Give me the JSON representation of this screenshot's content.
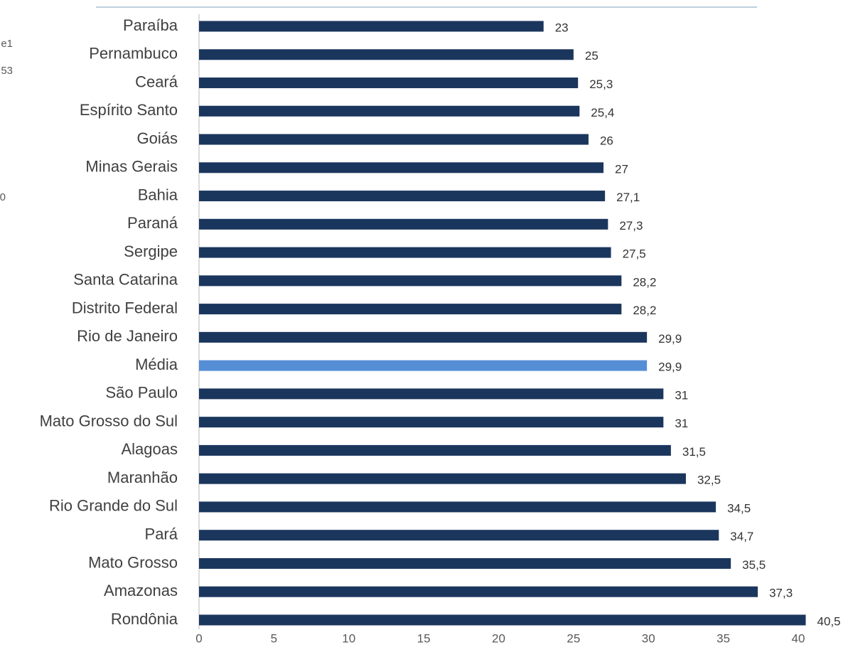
{
  "chart_data": {
    "type": "barh",
    "categories": [
      "Paraíba",
      "Pernambuco",
      "Ceará",
      "Espírito Santo",
      "Goiás",
      "Minas Gerais",
      "Bahia",
      "Paraná",
      "Sergipe",
      "Santa Catarina",
      "Distrito Federal",
      "Rio de Janeiro",
      "Média",
      "São Paulo",
      "Mato Grosso do Sul",
      "Alagoas",
      "Maranhão",
      "Rio Grande do Sul",
      "Pará",
      "Mato Grosso",
      "Amazonas",
      "Rondônia"
    ],
    "values": [
      23,
      25,
      25.3,
      25.4,
      26,
      27,
      27.1,
      27.3,
      27.5,
      28.2,
      28.2,
      29.9,
      29.9,
      31,
      31,
      31.5,
      32.5,
      34.5,
      34.7,
      35.5,
      37.3,
      40.5
    ],
    "value_labels": [
      "23",
      "25",
      "25,3",
      "25,4",
      "26",
      "27",
      "27,1",
      "27,3",
      "27,5",
      "28,2",
      "28,2",
      "29,9",
      "29,9",
      "31",
      "31",
      "31,5",
      "32,5",
      "34,5",
      "34,7",
      "35,5",
      "37,3",
      "40,5"
    ],
    "colors": [
      "#1b365d",
      "#1b365d",
      "#1b365d",
      "#1b365d",
      "#1b365d",
      "#1b365d",
      "#1b365d",
      "#1b365d",
      "#1b365d",
      "#1b365d",
      "#1b365d",
      "#1b365d",
      "#558ed5",
      "#1b365d",
      "#1b365d",
      "#1b365d",
      "#1b365d",
      "#1b365d",
      "#1b365d",
      "#1b365d",
      "#1b365d",
      "#1b365d"
    ],
    "xlim": [
      0,
      40
    ],
    "xticks": [
      0,
      5,
      10,
      15,
      20,
      25,
      30,
      35,
      40
    ],
    "annotations": [
      "e1",
      "53",
      "0"
    ]
  }
}
